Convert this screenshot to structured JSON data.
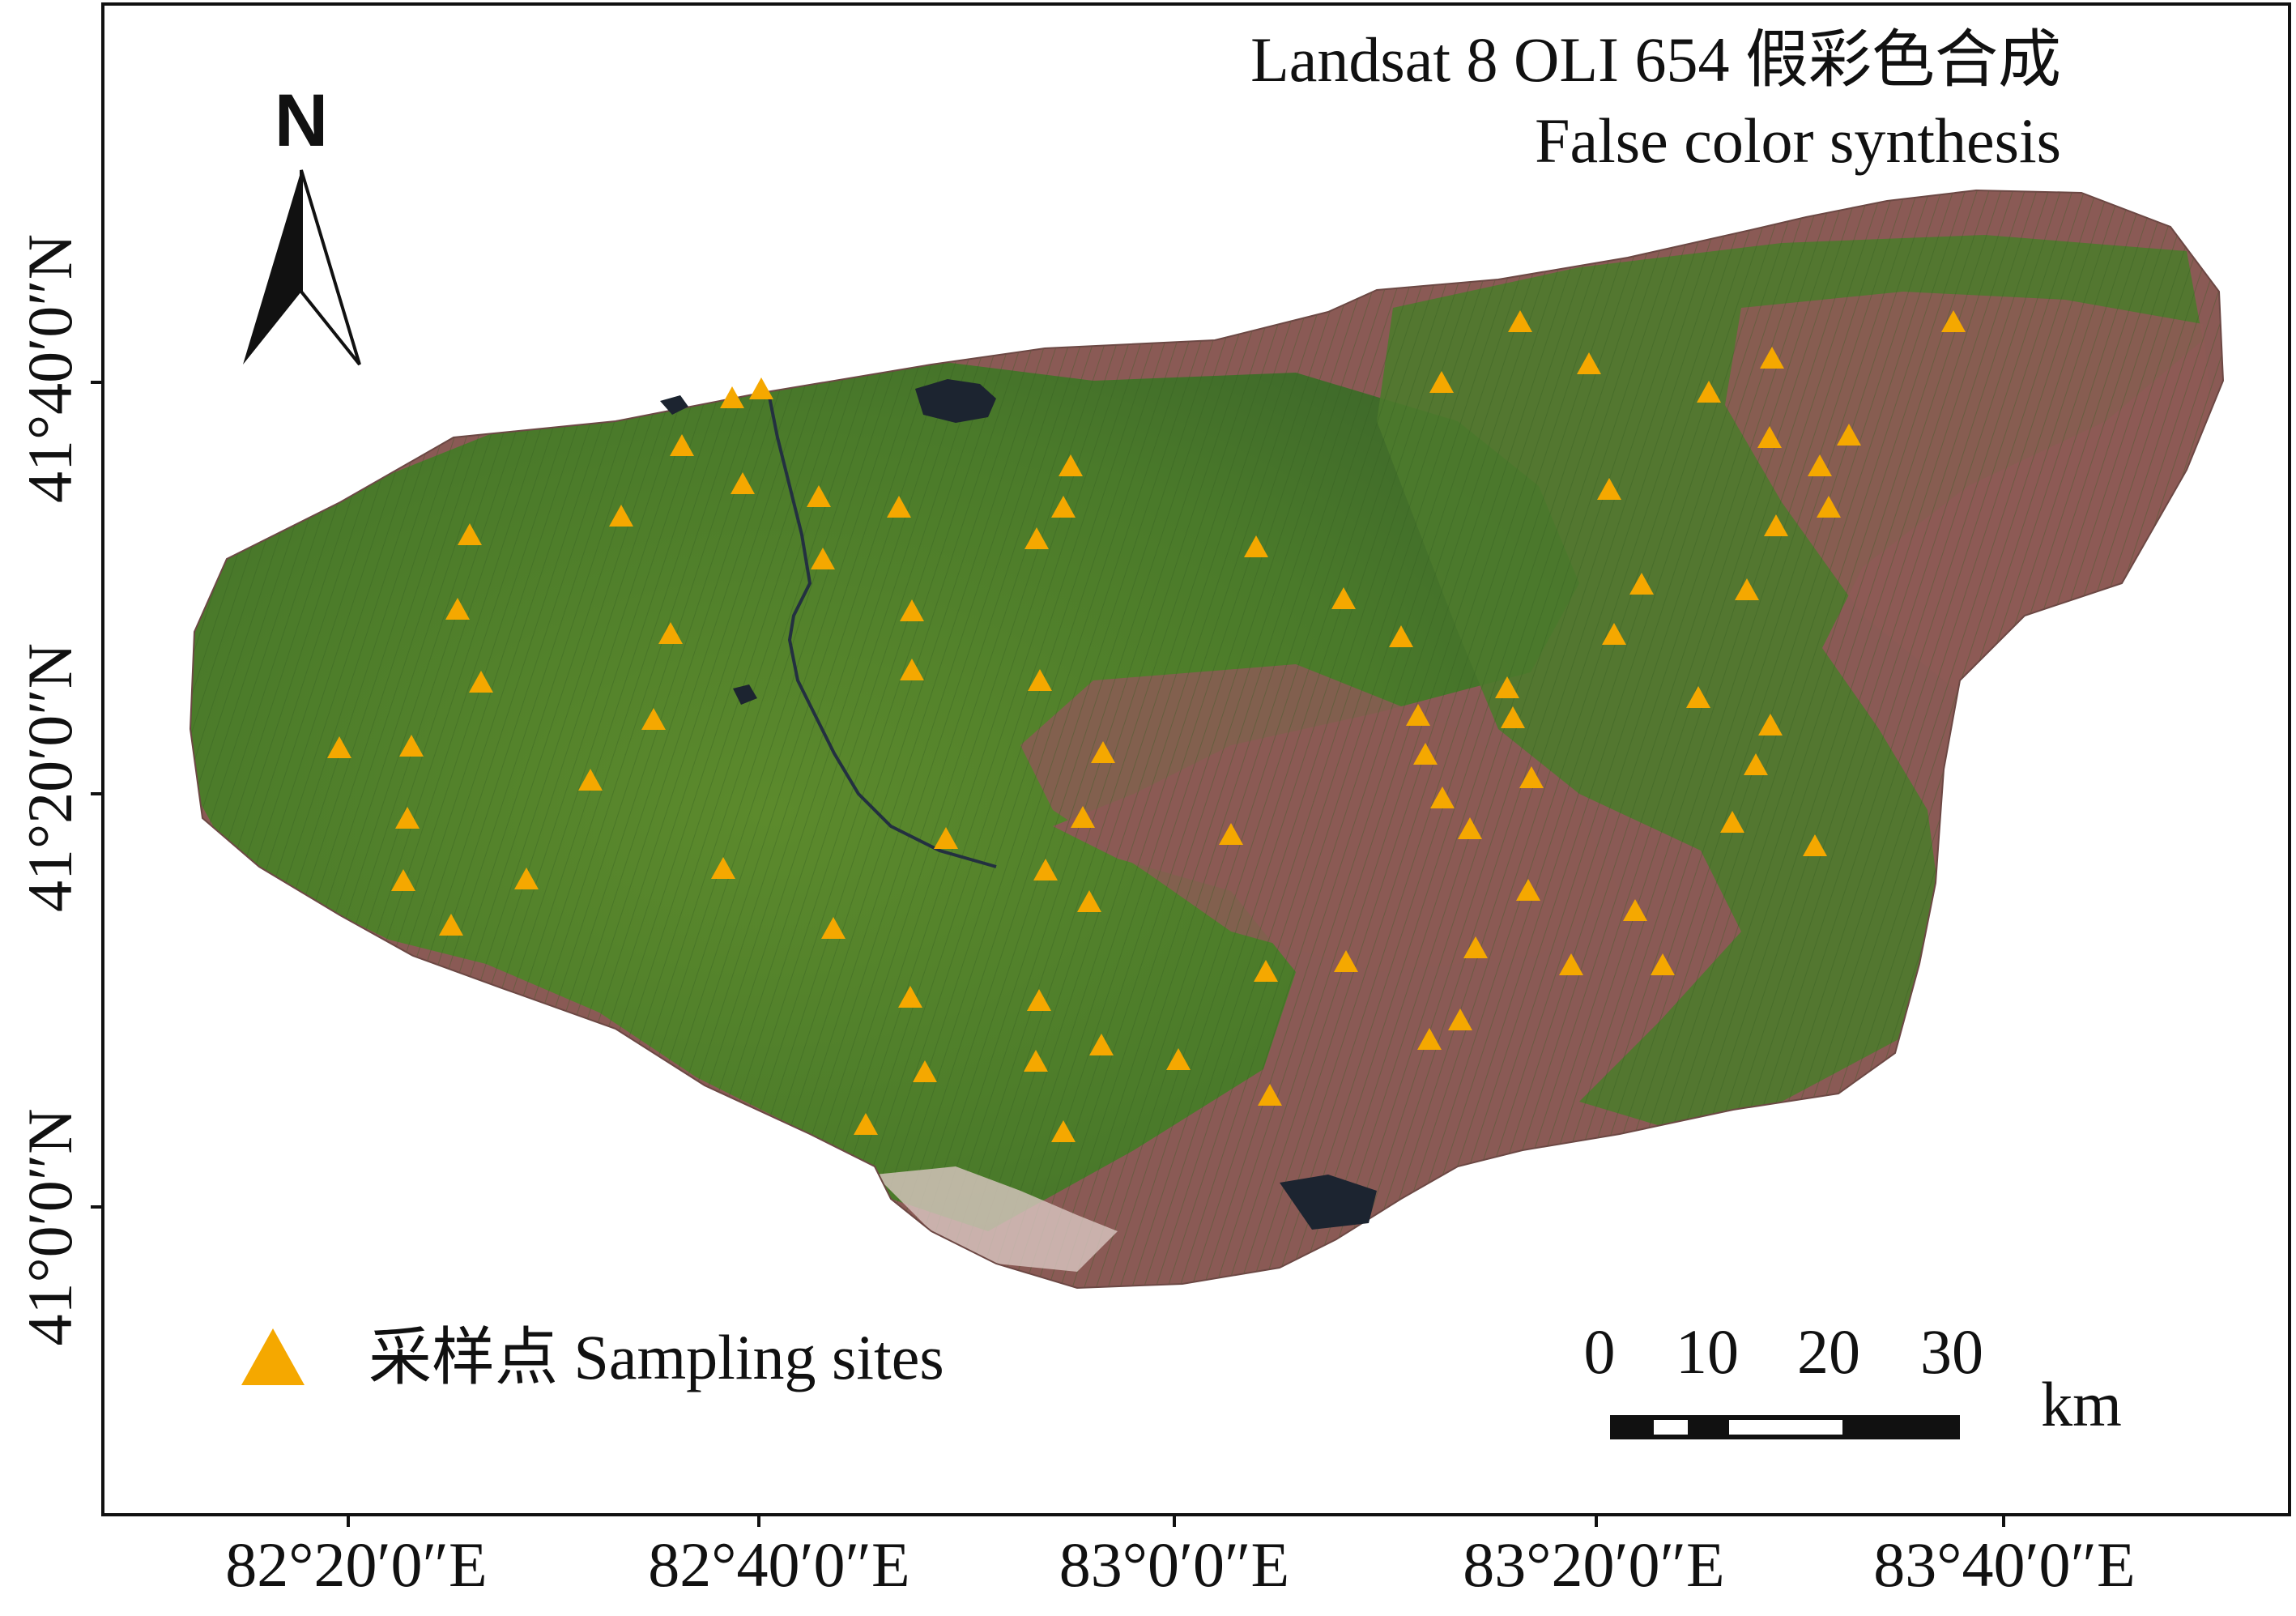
{
  "map": {
    "title_line1": "Landsat 8 OLI 654  假彩色合成",
    "title_line2": "False color synthesis",
    "north_label": "N",
    "longitude_ticks": [
      "82°20′0″E",
      "82°40′0″E",
      "83°0′0″E",
      "83°20′0″E",
      "83°40′0″E"
    ],
    "latitude_ticks": [
      "41°40′0″N",
      "41°20′0″N",
      "41°0′0″N"
    ],
    "legend": {
      "label": "采样点  Sampling sites",
      "symbol_color": "#F5A800"
    },
    "scale_bar": {
      "ticks": [
        "0",
        "10",
        "20",
        "30"
      ],
      "unit": "km"
    },
    "colors": {
      "barren": "#8a5a55",
      "vegetation": "#4f7a2a",
      "water": "#1c2430",
      "site": "#F5A800"
    },
    "site_count": 80
  }
}
